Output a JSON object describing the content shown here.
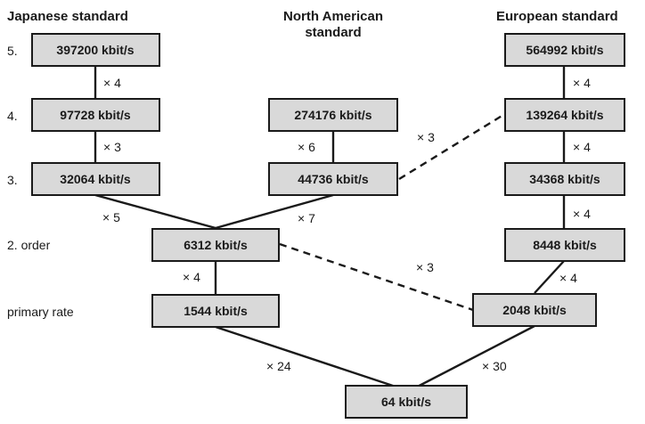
{
  "headers": {
    "japanese": "Japanese standard",
    "north_american_1": "North American",
    "north_american_2": "standard",
    "european": "European standard"
  },
  "levels": {
    "l5": "5.",
    "l4": "4.",
    "l3": "3.",
    "l2": "2. order",
    "primary": "primary rate"
  },
  "rates": {
    "jp5": "397200 kbit/s",
    "jp4": "97728 kbit/s",
    "jp3": "32064 kbit/s",
    "na4": "274176 kbit/s",
    "na3": "44736 kbit/s",
    "eu5": "564992 kbit/s",
    "eu4": "139264 kbit/s",
    "eu3": "34368 kbit/s",
    "eu2": "8448 kbit/s",
    "o2": "6312 kbit/s",
    "p1544": "1544 kbit/s",
    "p2048": "2048 kbit/s",
    "base": "64 kbit/s"
  },
  "multipliers": {
    "jp5_jp4": "× 4",
    "jp4_jp3": "× 3",
    "jp3_o2": "× 5",
    "na4_na3": "× 6",
    "na3_o2": "× 7",
    "na3_eu4": "× 3",
    "eu5_eu4": "× 4",
    "eu4_eu3": "× 4",
    "eu3_eu2": "× 4",
    "eu2_p2048": "× 4",
    "o2_p2048": "× 3",
    "o2_p1544": "× 4",
    "p1544_base": "× 24",
    "p2048_base": "× 30"
  }
}
